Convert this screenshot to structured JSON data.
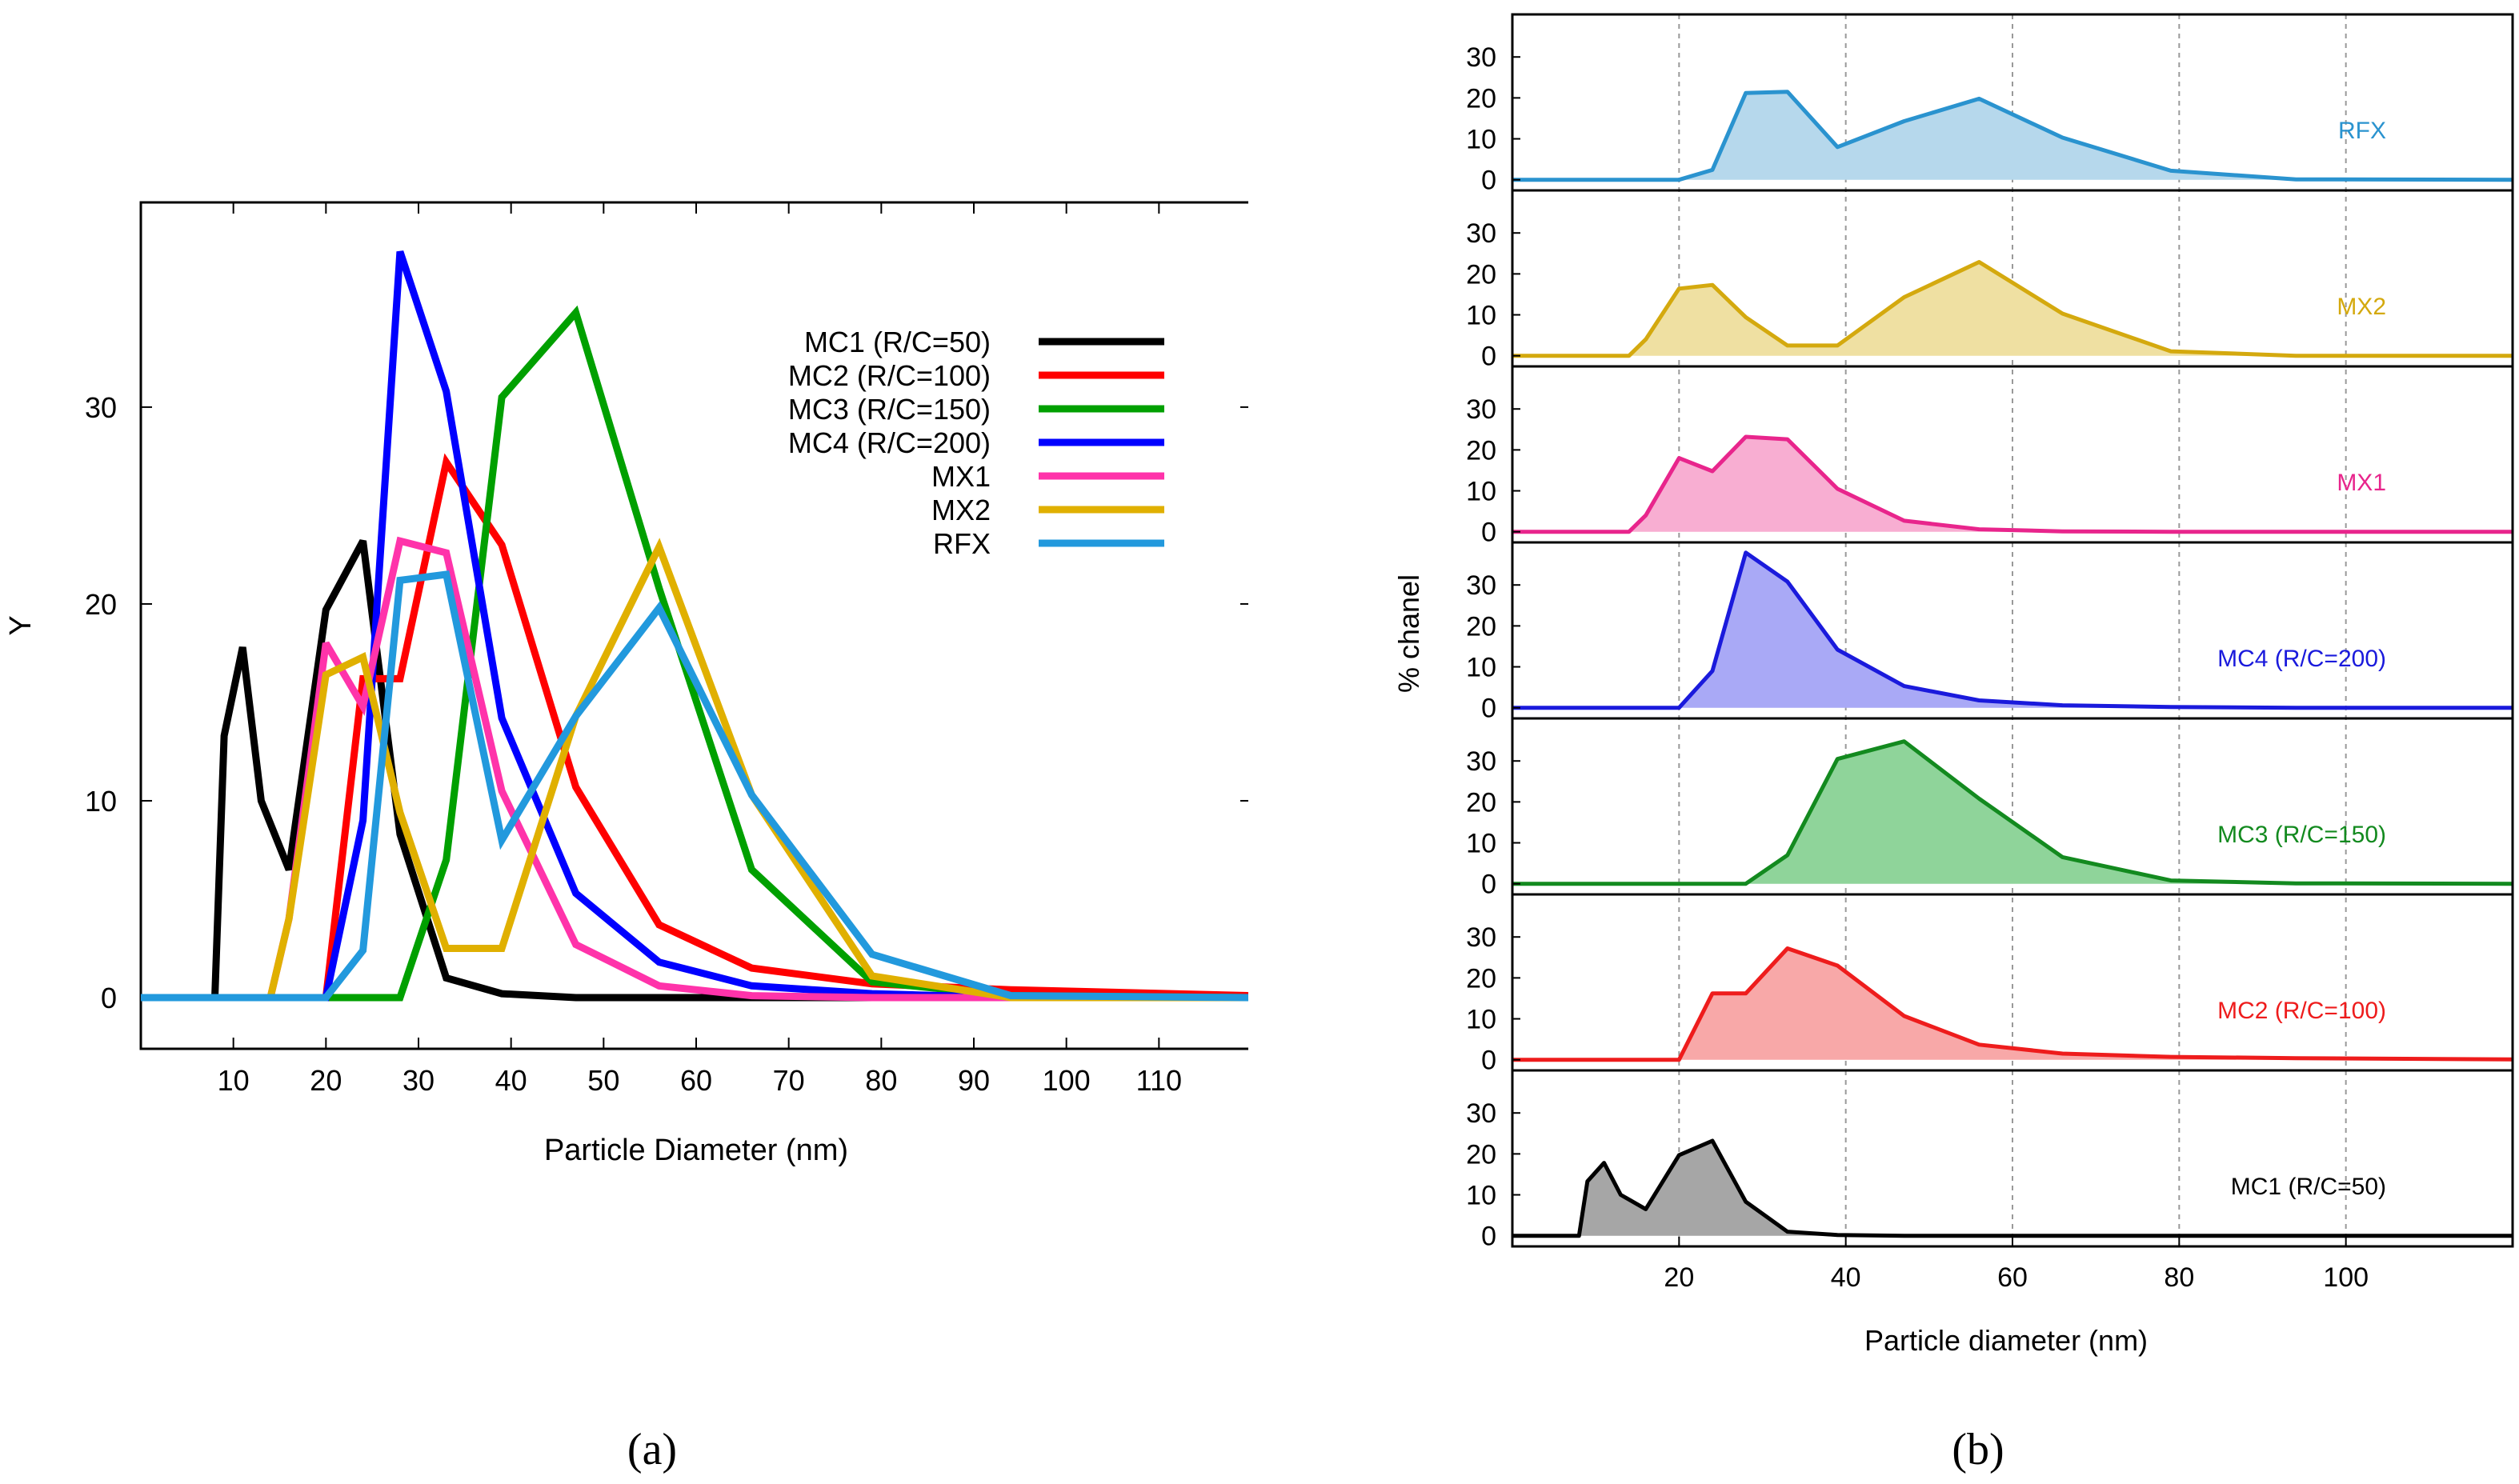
{
  "chart_data": [
    {
      "panel": "(a)",
      "type": "line",
      "title": "",
      "xlabel": "Particle Diameter (nm)",
      "ylabel": "Y",
      "xlim": [
        0,
        120
      ],
      "ylim": [
        -2.6,
        40.4
      ],
      "x_ticks": [
        10,
        20,
        30,
        40,
        50,
        60,
        70,
        80,
        90,
        100,
        110
      ],
      "y_ticks": [
        0,
        10,
        20,
        30
      ],
      "legend_position": "top-right",
      "grid": false,
      "series": [
        {
          "name": "MC1 (R/C=50)",
          "color": "#000000",
          "x": [
            0,
            8,
            9,
            11,
            13,
            16,
            20,
            24,
            28,
            33,
            39,
            47,
            56,
            66,
            79,
            94,
            120
          ],
          "y": [
            0,
            0,
            13.3,
            17.8,
            10,
            6.5,
            19.7,
            23.2,
            8.3,
            1,
            0.2,
            0,
            0,
            0,
            0,
            0,
            0
          ]
        },
        {
          "name": "MC2 (R/C=100)",
          "color": "#ff0000",
          "x": [
            0,
            20,
            24,
            28,
            33,
            39,
            47,
            56,
            66,
            79,
            94,
            120
          ],
          "y": [
            0,
            0,
            16.2,
            16.2,
            27.2,
            23,
            10.7,
            3.7,
            1.5,
            0.7,
            0.4,
            0.1
          ]
        },
        {
          "name": "MC3 (R/C=150)",
          "color": "#00a000",
          "x": [
            0,
            28,
            33,
            39,
            47,
            56,
            66,
            79,
            94,
            120
          ],
          "y": [
            0,
            0,
            7,
            30.5,
            34.8,
            20.8,
            6.5,
            0.8,
            0.1,
            0
          ]
        },
        {
          "name": "MC4 (R/C=200)",
          "color": "#0000ff",
          "x": [
            0,
            20,
            24,
            28,
            33,
            39,
            47,
            56,
            66,
            79,
            94,
            120
          ],
          "y": [
            0,
            0,
            9,
            37.9,
            30.8,
            14.2,
            5.3,
            1.8,
            0.6,
            0.2,
            0,
            0
          ]
        },
        {
          "name": "MX1",
          "color": "#ff33aa",
          "x": [
            0,
            14,
            16,
            20,
            24,
            28,
            33,
            39,
            47,
            56,
            66,
            79,
            94,
            120
          ],
          "y": [
            0,
            0,
            4,
            18,
            14.8,
            23.2,
            22.6,
            10.5,
            2.7,
            0.6,
            0.1,
            0,
            0,
            0
          ]
        },
        {
          "name": "MX2",
          "color": "#e0b000",
          "x": [
            0,
            14,
            16,
            20,
            24,
            28,
            33,
            39,
            47,
            56,
            66,
            79,
            94,
            120
          ],
          "y": [
            0,
            0,
            4,
            16.4,
            17.3,
            9.4,
            2.5,
            2.5,
            14.3,
            22.9,
            10.3,
            1.1,
            0,
            0
          ]
        },
        {
          "name": "RFX",
          "color": "#2299dd",
          "x": [
            0,
            20,
            24,
            28,
            33,
            39,
            47,
            56,
            66,
            79,
            94,
            120
          ],
          "y": [
            0,
            0,
            2.4,
            21.2,
            21.5,
            8,
            14.3,
            19.8,
            10.3,
            2.2,
            0.1,
            0
          ]
        }
      ]
    },
    {
      "panel": "(b)",
      "type": "area",
      "title": "",
      "xlabel": "Particle diameter (nm)",
      "ylabel": "% chanel",
      "xlim": [
        0,
        120
      ],
      "ylim": [
        -2.6,
        40.4
      ],
      "x_ticks": [
        20,
        40,
        60,
        80,
        100
      ],
      "y_ticks": [
        0,
        10,
        20,
        30
      ],
      "grid": "vertical dashed",
      "panels": [
        {
          "name": "RFX",
          "line_color": "#2a93cf",
          "fill_color": "#b6d8ec",
          "x": [
            0,
            20,
            24,
            28,
            33,
            39,
            47,
            56,
            66,
            79,
            94,
            120
          ],
          "y": [
            0,
            0,
            2.4,
            21.2,
            21.5,
            8,
            14.3,
            19.8,
            10.3,
            2.2,
            0.1,
            0
          ]
        },
        {
          "name": "MX2",
          "line_color": "#d4a90e",
          "fill_color": "#efe0a2",
          "x": [
            0,
            14,
            16,
            20,
            24,
            28,
            33,
            39,
            47,
            56,
            66,
            79,
            94,
            120
          ],
          "y": [
            0,
            0,
            4,
            16.4,
            17.3,
            9.4,
            2.5,
            2.5,
            14.3,
            22.9,
            10.3,
            1.1,
            0,
            0
          ]
        },
        {
          "name": "MX1",
          "line_color": "#e8258c",
          "fill_color": "#f8aed2",
          "x": [
            0,
            14,
            16,
            20,
            24,
            28,
            33,
            39,
            47,
            56,
            66,
            79,
            94,
            120
          ],
          "y": [
            0,
            0,
            4,
            18,
            14.8,
            23.2,
            22.6,
            10.5,
            2.7,
            0.6,
            0.1,
            0,
            0,
            0
          ]
        },
        {
          "name": "MC4 (R/C=200)",
          "line_color": "#1a1adc",
          "fill_color": "#a9a9f6",
          "x": [
            0,
            20,
            24,
            28,
            33,
            39,
            47,
            56,
            66,
            79,
            94,
            120
          ],
          "y": [
            0,
            0,
            9,
            37.9,
            30.8,
            14.2,
            5.3,
            1.8,
            0.6,
            0.2,
            0,
            0
          ]
        },
        {
          "name": "MC3 (R/C=150)",
          "line_color": "#138a1f",
          "fill_color": "#8fd49a",
          "x": [
            0,
            28,
            33,
            39,
            47,
            56,
            66,
            79,
            94,
            120
          ],
          "y": [
            0,
            0,
            7,
            30.5,
            34.8,
            20.8,
            6.5,
            0.8,
            0.1,
            0
          ]
        },
        {
          "name": "MC2 (R/C=100)",
          "line_color": "#ee1c1c",
          "fill_color": "#f8a8a8",
          "x": [
            0,
            20,
            24,
            28,
            33,
            39,
            47,
            56,
            66,
            79,
            94,
            120
          ],
          "y": [
            0,
            0,
            16.2,
            16.2,
            27.2,
            23,
            10.7,
            3.7,
            1.5,
            0.7,
            0.4,
            0.1
          ]
        },
        {
          "name": "MC1 (R/C=50)",
          "line_color": "#000000",
          "fill_color": "#a6a6a6",
          "x": [
            0,
            8,
            9,
            11,
            13,
            16,
            20,
            24,
            28,
            33,
            39,
            47,
            56,
            66,
            79,
            94,
            120
          ],
          "y": [
            0,
            0,
            13.3,
            17.8,
            10,
            6.5,
            19.7,
            23.2,
            8.3,
            1,
            0.2,
            0,
            0,
            0,
            0,
            0,
            0
          ]
        }
      ]
    }
  ],
  "captions": {
    "a": "(a)",
    "b": "(b)"
  }
}
